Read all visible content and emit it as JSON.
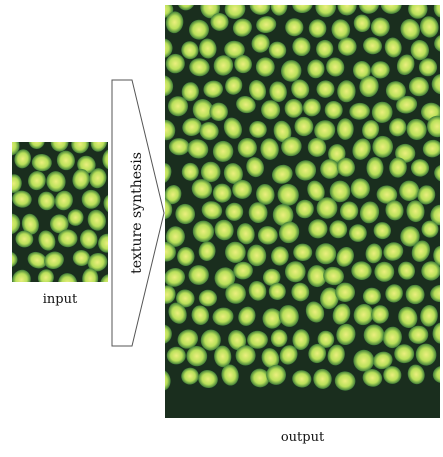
{
  "labels": {
    "input": "input",
    "output": "output",
    "arrow": "texture synthesis"
  },
  "colors": {
    "background": "#1a2e1e",
    "cell_edge": "#3f7d38",
    "cell_mid": "#b9e05a",
    "cell_center": "#ecef7e",
    "arrow_stroke": "#555555"
  },
  "icons": {
    "arrow": "right-arrow-chevron-icon"
  }
}
